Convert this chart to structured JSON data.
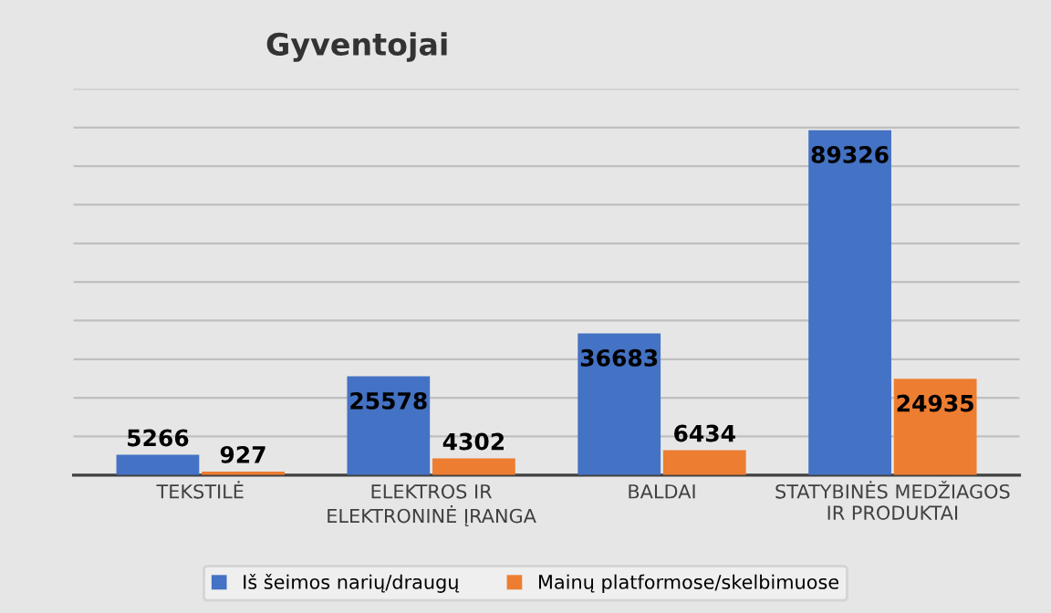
{
  "chart_data": {
    "type": "bar",
    "title": "Gyventojai",
    "categories": [
      "TEKSTILĖ",
      "ELEKTROS IR ELEKTRONINĖ ĮRANGA",
      "BALDAI",
      "STATYBINĖS MEDŽIAGOS IR PRODUKTAI"
    ],
    "series": [
      {
        "name": "Iš šeimos narių/draugų",
        "color": "#4472c4",
        "values": [
          5266,
          25578,
          36683,
          89326
        ]
      },
      {
        "name": "Mainų platformose/skelbimuose",
        "color": "#ed7d31",
        "values": [
          927,
          4302,
          6434,
          24935
        ]
      }
    ],
    "ylim": [
      0,
      100000
    ],
    "yticks": [
      {
        "value": 0,
        "label": null
      },
      {
        "value": 10000,
        "label": null
      },
      {
        "value": 20000,
        "label": null
      },
      {
        "value": 30000,
        "label": null
      },
      {
        "value": 40000,
        "label": null
      },
      {
        "value": 50000,
        "label": null
      },
      {
        "value": 60000,
        "label": null
      },
      {
        "value": 70000,
        "label": null
      },
      {
        "value": 80000,
        "label": null
      },
      {
        "value": 90000,
        "label": null
      },
      {
        "value": 100000,
        "label": null
      }
    ],
    "tick_labels": "x",
    "grid": "y",
    "legend": "bottom",
    "data_labels": true
  }
}
